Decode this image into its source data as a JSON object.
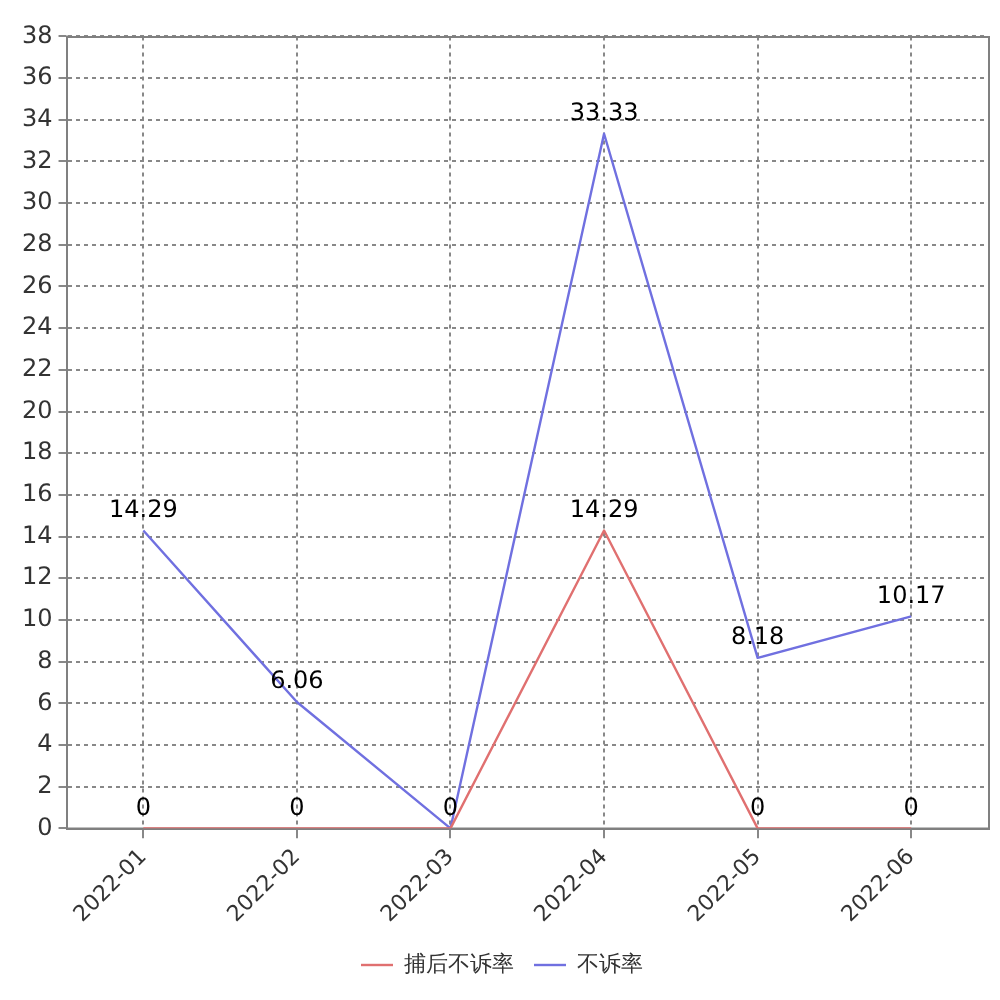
{
  "chart_data": {
    "type": "line",
    "categories": [
      "2022-01",
      "2022-02",
      "2022-03",
      "2022-04",
      "2022-05",
      "2022-06"
    ],
    "series": [
      {
        "name": "捕后不诉率",
        "color": "#e07070",
        "values": [
          0,
          0,
          0,
          14.29,
          0,
          0
        ],
        "value_labels": [
          "0",
          "0",
          null,
          "14.29",
          "0",
          "0"
        ]
      },
      {
        "name": "不诉率",
        "color": "#7070e0",
        "values": [
          14.29,
          6.06,
          0,
          33.33,
          8.18,
          10.17
        ],
        "value_labels": [
          "14.29",
          "6.06",
          "0",
          "33.33",
          "8.18",
          "10.17"
        ]
      }
    ],
    "ylim": [
      0,
      38
    ],
    "yticks": [
      0,
      2,
      4,
      6,
      8,
      10,
      12,
      14,
      16,
      18,
      20,
      22,
      24,
      26,
      28,
      30,
      32,
      34,
      36,
      38
    ],
    "grid": true,
    "legend": "bottom",
    "marker": "none",
    "line_style": "solid"
  }
}
